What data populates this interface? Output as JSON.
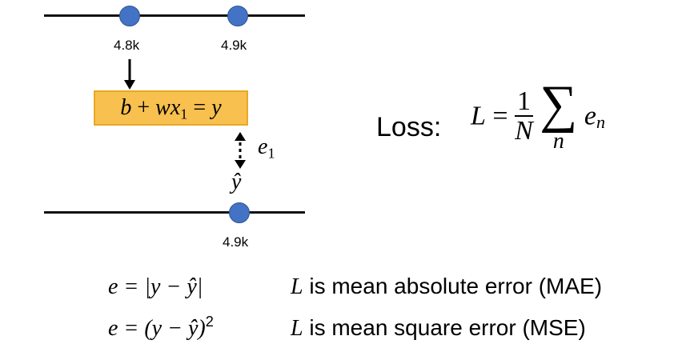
{
  "top_axis": {
    "ticks": [
      "4.8k",
      "4.9k"
    ]
  },
  "formula_box": {
    "b": "b",
    "plus": "+",
    "w": "w",
    "x": "x",
    "x_sub": "1",
    "eq": "=",
    "y": "y"
  },
  "error_label": {
    "e": "e",
    "sub": "1"
  },
  "yhat_label": "ŷ",
  "bottom_axis": {
    "ticks": [
      "4.9k"
    ]
  },
  "loss": {
    "label": "Loss:",
    "L": "L",
    "eq": "=",
    "num": "1",
    "den": "N",
    "sum_symbol": "∑",
    "sum_index": "n",
    "e": "e",
    "e_sub": "n"
  },
  "definitions": [
    {
      "lhs": "e = |y − ŷ|",
      "L": "L",
      "desc": " is mean absolute error (MAE)"
    },
    {
      "lhs": "e = (y − ŷ)",
      "sup": "2",
      "L": "L",
      "desc": " is mean square error (MSE)"
    }
  ],
  "colors": {
    "dot": "#4472c4",
    "box_fill": "#f7c04f",
    "box_border": "#e9a825"
  }
}
